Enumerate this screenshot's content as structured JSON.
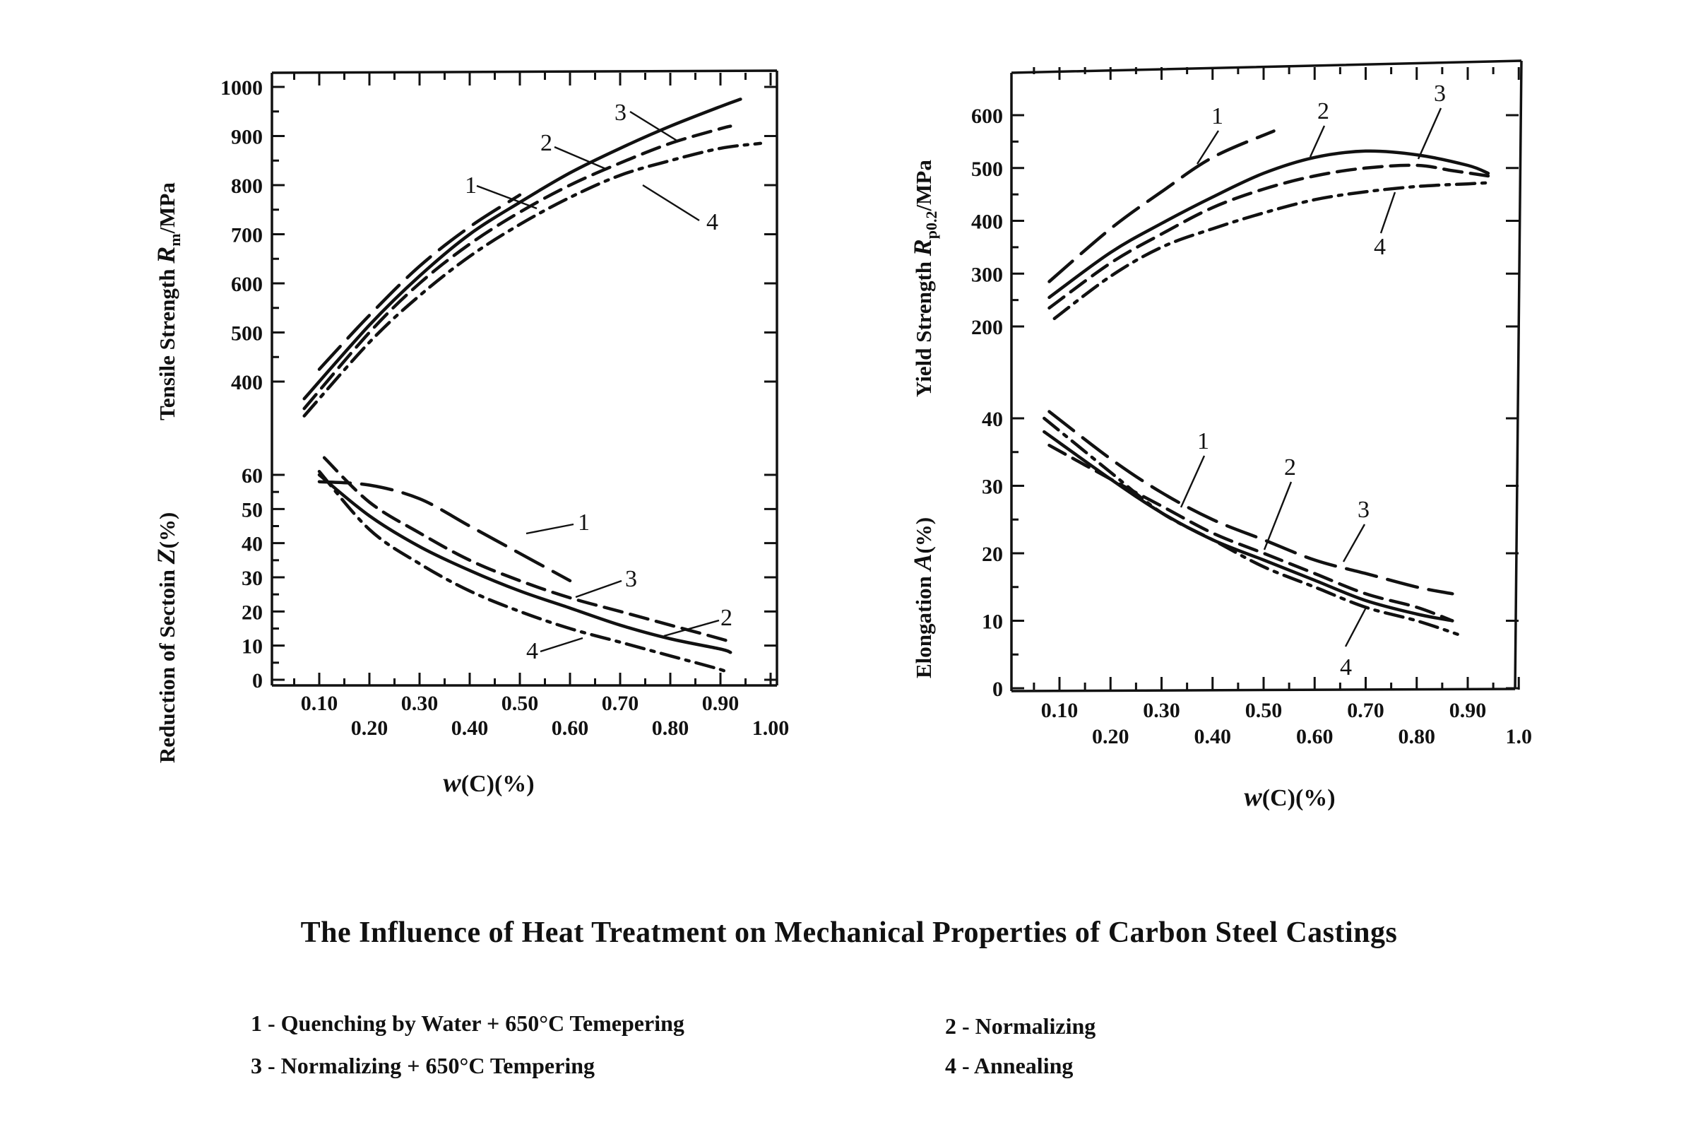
{
  "title": "The Influence of Heat Treatment on Mechanical Properties of Carbon Steel Castings",
  "legend": {
    "1": "1 - Quenching by Water + 650°C Temepering",
    "2": "2 - Normalizing",
    "3": "3 - Normalizing + 650°C Tempering",
    "4": "4 - Annealing"
  },
  "chart_data": [
    {
      "type": "line",
      "panel": "left",
      "ylabel_main": "Tensile Strength ",
      "ylabel_sym": "R",
      "ylabel_sub": "m",
      "ylabel_unit": "/MPa",
      "xlabel_sym": "w",
      "xlabel_rest": "(C)(%)",
      "x_ticks_upper": [
        "0.10",
        "0.30",
        "0.50",
        "0.70",
        "0.90"
      ],
      "x_ticks_lower": [
        "0.20",
        "0.40",
        "0.60",
        "0.80",
        "1.00"
      ],
      "y_ticks": [
        "1000",
        "900",
        "800",
        "700",
        "600",
        "500",
        "400"
      ],
      "ylim": [
        400,
        1000
      ],
      "series": [
        {
          "name": "1",
          "style": "long-dash",
          "x": [
            0.1,
            0.2,
            0.3,
            0.4,
            0.5
          ],
          "y": [
            425,
            535,
            635,
            715,
            780
          ]
        },
        {
          "name": "2",
          "style": "dash",
          "x": [
            0.07,
            0.2,
            0.3,
            0.4,
            0.5,
            0.6,
            0.7,
            0.8,
            0.9,
            0.92
          ],
          "y": [
            345,
            500,
            600,
            680,
            745,
            800,
            845,
            885,
            915,
            920
          ]
        },
        {
          "name": "3",
          "style": "solid",
          "x": [
            0.07,
            0.2,
            0.3,
            0.4,
            0.5,
            0.6,
            0.7,
            0.8,
            0.9,
            0.94
          ],
          "y": [
            365,
            515,
            615,
            700,
            765,
            825,
            875,
            920,
            960,
            975
          ]
        },
        {
          "name": "4",
          "style": "dash-dot",
          "x": [
            0.07,
            0.2,
            0.3,
            0.4,
            0.5,
            0.6,
            0.7,
            0.8,
            0.9,
            0.98
          ],
          "y": [
            330,
            480,
            575,
            655,
            720,
            775,
            820,
            850,
            875,
            885
          ]
        }
      ]
    },
    {
      "type": "line",
      "panel": "left",
      "ylabel_main": "Reduction of Sectoin ",
      "ylabel_sym": "Z",
      "ylabel_unit": "(%)",
      "y_ticks": [
        "60",
        "50",
        "40",
        "30",
        "20",
        "10",
        "0"
      ],
      "ylim": [
        0,
        60
      ],
      "series": [
        {
          "name": "1",
          "style": "long-dash",
          "x": [
            0.1,
            0.2,
            0.3,
            0.4,
            0.5,
            0.6
          ],
          "y": [
            58,
            57,
            53,
            45,
            37,
            29
          ]
        },
        {
          "name": "2",
          "style": "solid",
          "x": [
            0.1,
            0.2,
            0.3,
            0.4,
            0.5,
            0.6,
            0.7,
            0.8,
            0.9,
            0.92
          ],
          "y": [
            60,
            48,
            39,
            32,
            26,
            21,
            16,
            12,
            9,
            8
          ]
        },
        {
          "name": "3",
          "style": "dash",
          "x": [
            0.11,
            0.2,
            0.3,
            0.4,
            0.5,
            0.6,
            0.7,
            0.8,
            0.9,
            0.92
          ],
          "y": [
            65,
            52,
            43,
            35,
            29,
            24,
            20,
            16,
            12,
            11
          ]
        },
        {
          "name": "4",
          "style": "dash-dot",
          "x": [
            0.1,
            0.2,
            0.3,
            0.4,
            0.5,
            0.6,
            0.7,
            0.8,
            0.9,
            0.91
          ],
          "y": [
            61,
            44,
            34,
            26,
            20,
            15,
            11,
            7,
            3,
            2
          ]
        }
      ]
    },
    {
      "type": "line",
      "panel": "right",
      "ylabel_main": "Yield Strength ",
      "ylabel_sym": "R",
      "ylabel_sub": "p0.2",
      "ylabel_unit": "/MPa",
      "xlabel_sym": "w",
      "xlabel_rest": "(C)(%)",
      "x_ticks_upper": [
        "0.10",
        "0.30",
        "0.50",
        "0.70",
        "0.90"
      ],
      "x_ticks_lower": [
        "0.20",
        "0.40",
        "0.60",
        "0.80",
        "1.0"
      ],
      "y_ticks": [
        "600",
        "500",
        "400",
        "300",
        "200"
      ],
      "ylim": [
        200,
        600
      ],
      "series": [
        {
          "name": "1",
          "style": "long-dash",
          "x": [
            0.08,
            0.2,
            0.3,
            0.4,
            0.52
          ],
          "y": [
            285,
            385,
            455,
            520,
            570
          ]
        },
        {
          "name": "2",
          "style": "solid",
          "x": [
            0.08,
            0.2,
            0.3,
            0.4,
            0.5,
            0.6,
            0.7,
            0.8,
            0.9,
            0.94
          ],
          "y": [
            255,
            340,
            395,
            445,
            490,
            520,
            532,
            525,
            505,
            490
          ]
        },
        {
          "name": "3",
          "style": "dash",
          "x": [
            0.08,
            0.2,
            0.3,
            0.4,
            0.5,
            0.6,
            0.7,
            0.8,
            0.87,
            0.94
          ],
          "y": [
            235,
            320,
            375,
            425,
            460,
            485,
            500,
            505,
            495,
            485
          ]
        },
        {
          "name": "4",
          "style": "dash-dot",
          "x": [
            0.09,
            0.2,
            0.3,
            0.4,
            0.5,
            0.6,
            0.7,
            0.8,
            0.9,
            0.94
          ],
          "y": [
            215,
            295,
            350,
            385,
            415,
            440,
            455,
            465,
            470,
            472
          ]
        }
      ]
    },
    {
      "type": "line",
      "panel": "right",
      "ylabel_main": "Elongation ",
      "ylabel_sym": "A",
      "ylabel_unit": "(%)",
      "y_ticks": [
        "40",
        "30",
        "20",
        "10",
        "0"
      ],
      "ylim": [
        0,
        40
      ],
      "series": [
        {
          "name": "1",
          "style": "dash",
          "x": [
            0.08,
            0.2,
            0.3,
            0.4,
            0.5,
            0.6,
            0.7,
            0.8,
            0.87
          ],
          "y": [
            36,
            31,
            27,
            23,
            20,
            17,
            14,
            12,
            10
          ]
        },
        {
          "name": "2",
          "style": "solid",
          "x": [
            0.07,
            0.2,
            0.3,
            0.4,
            0.5,
            0.6,
            0.7,
            0.8,
            0.87
          ],
          "y": [
            38,
            31,
            26,
            22,
            19,
            16,
            13,
            11,
            10
          ]
        },
        {
          "name": "3",
          "style": "long-dash",
          "x": [
            0.08,
            0.2,
            0.3,
            0.4,
            0.5,
            0.6,
            0.7,
            0.8,
            0.87
          ],
          "y": [
            41,
            34,
            29,
            25,
            22,
            19,
            17,
            15,
            14
          ]
        },
        {
          "name": "4",
          "style": "dash-dot",
          "x": [
            0.07,
            0.2,
            0.3,
            0.4,
            0.5,
            0.6,
            0.7,
            0.8,
            0.88
          ],
          "y": [
            40,
            32,
            26,
            22,
            18,
            15,
            12,
            10,
            8
          ]
        }
      ]
    }
  ]
}
